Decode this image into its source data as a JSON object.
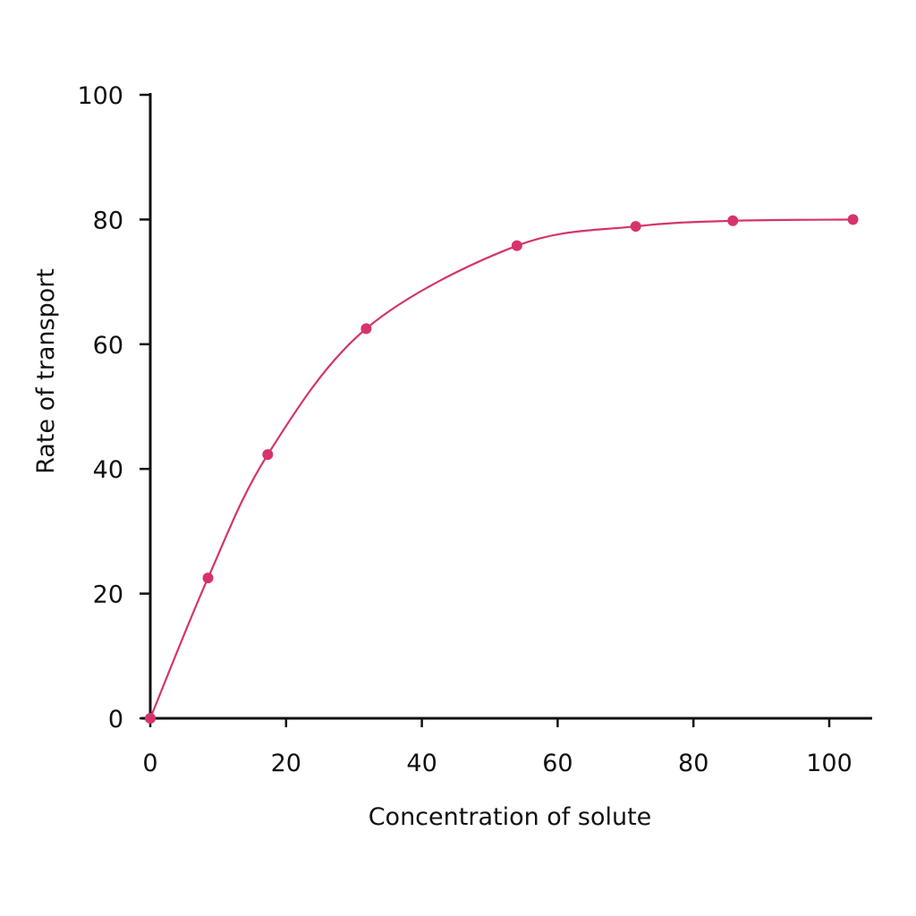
{
  "chart_data": {
    "type": "line",
    "title": "",
    "xlabel": "Concentration of solute",
    "ylabel": "Rate of transport",
    "xlim": [
      0,
      105
    ],
    "ylim": [
      0,
      100
    ],
    "x_ticks": [
      0,
      20,
      40,
      60,
      80,
      100
    ],
    "y_ticks": [
      0,
      20,
      40,
      60,
      80,
      100
    ],
    "x_tick_labels": [
      "0",
      "20",
      "40",
      "60",
      "80",
      "100"
    ],
    "y_tick_labels": [
      "0",
      "20",
      "40",
      "60",
      "80",
      "100"
    ],
    "grid": false,
    "legend": "none",
    "color": "#d6336c",
    "series": [
      {
        "x": [
          0,
          8.5,
          17.3,
          31.8,
          54,
          71.5,
          85.8,
          103.5
        ],
        "y": [
          0,
          22.5,
          42.3,
          62.5,
          75.8,
          78.9,
          79.8,
          80
        ]
      }
    ]
  }
}
